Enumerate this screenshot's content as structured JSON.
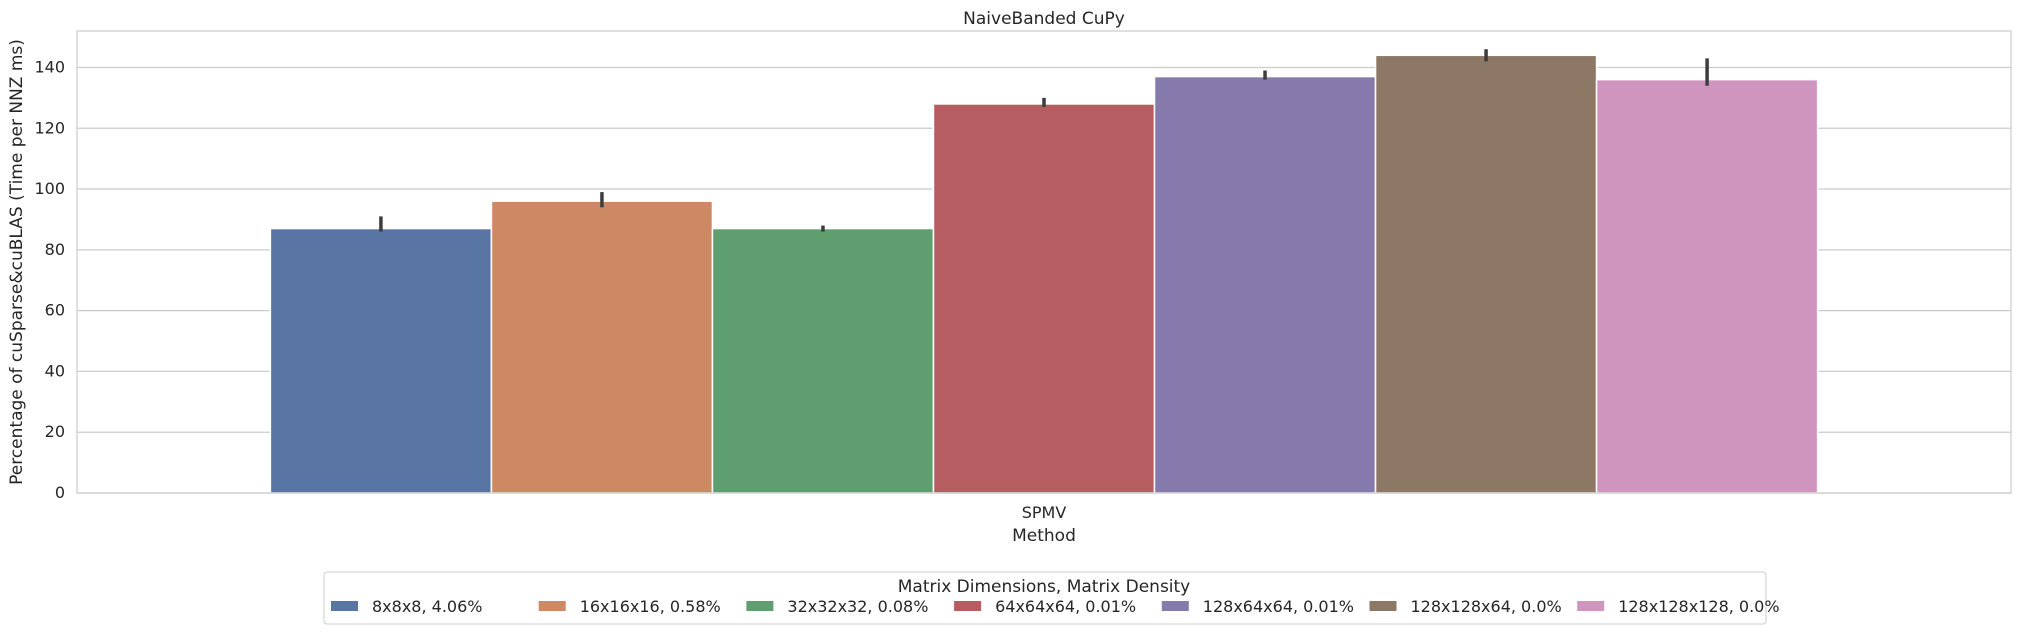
{
  "chart_data": {
    "type": "bar",
    "title": "NaiveBanded CuPy",
    "xlabel": "Method",
    "ylabel": "Percentage of cuSparse&cuBLAS (Time per NNZ ms)",
    "categories": [
      "SPMV"
    ],
    "ylim": [
      0,
      152
    ],
    "yticks": [
      0,
      20,
      40,
      60,
      80,
      100,
      120,
      140
    ],
    "grid": "y",
    "legend": {
      "title": "Matrix Dimensions, Matrix Density",
      "placement": "bottom-center"
    },
    "series": [
      {
        "name": "8x8x8, 4.06%",
        "values": [
          87
        ],
        "err_low": [
          86
        ],
        "err_high": [
          91
        ],
        "color": "#5975a4"
      },
      {
        "name": "16x16x16, 0.58%",
        "values": [
          96
        ],
        "err_low": [
          94
        ],
        "err_high": [
          99
        ],
        "color": "#cc8963"
      },
      {
        "name": "32x32x32, 0.08%",
        "values": [
          87
        ],
        "err_low": [
          86
        ],
        "err_high": [
          88
        ],
        "color": "#5f9e6e"
      },
      {
        "name": "64x64x64, 0.01%",
        "values": [
          128
        ],
        "err_low": [
          127
        ],
        "err_high": [
          130
        ],
        "color": "#b55d60"
      },
      {
        "name": "128x64x64, 0.01%",
        "values": [
          137
        ],
        "err_low": [
          136
        ],
        "err_high": [
          139
        ],
        "color": "#857aab"
      },
      {
        "name": "128x128x64, 0.0%",
        "values": [
          144
        ],
        "err_low": [
          142
        ],
        "err_high": [
          146
        ],
        "color": "#8d7866"
      },
      {
        "name": "128x128x128, 0.0%",
        "values": [
          136
        ],
        "err_low": [
          134
        ],
        "err_high": [
          143
        ],
        "color": "#d095bf"
      }
    ]
  }
}
